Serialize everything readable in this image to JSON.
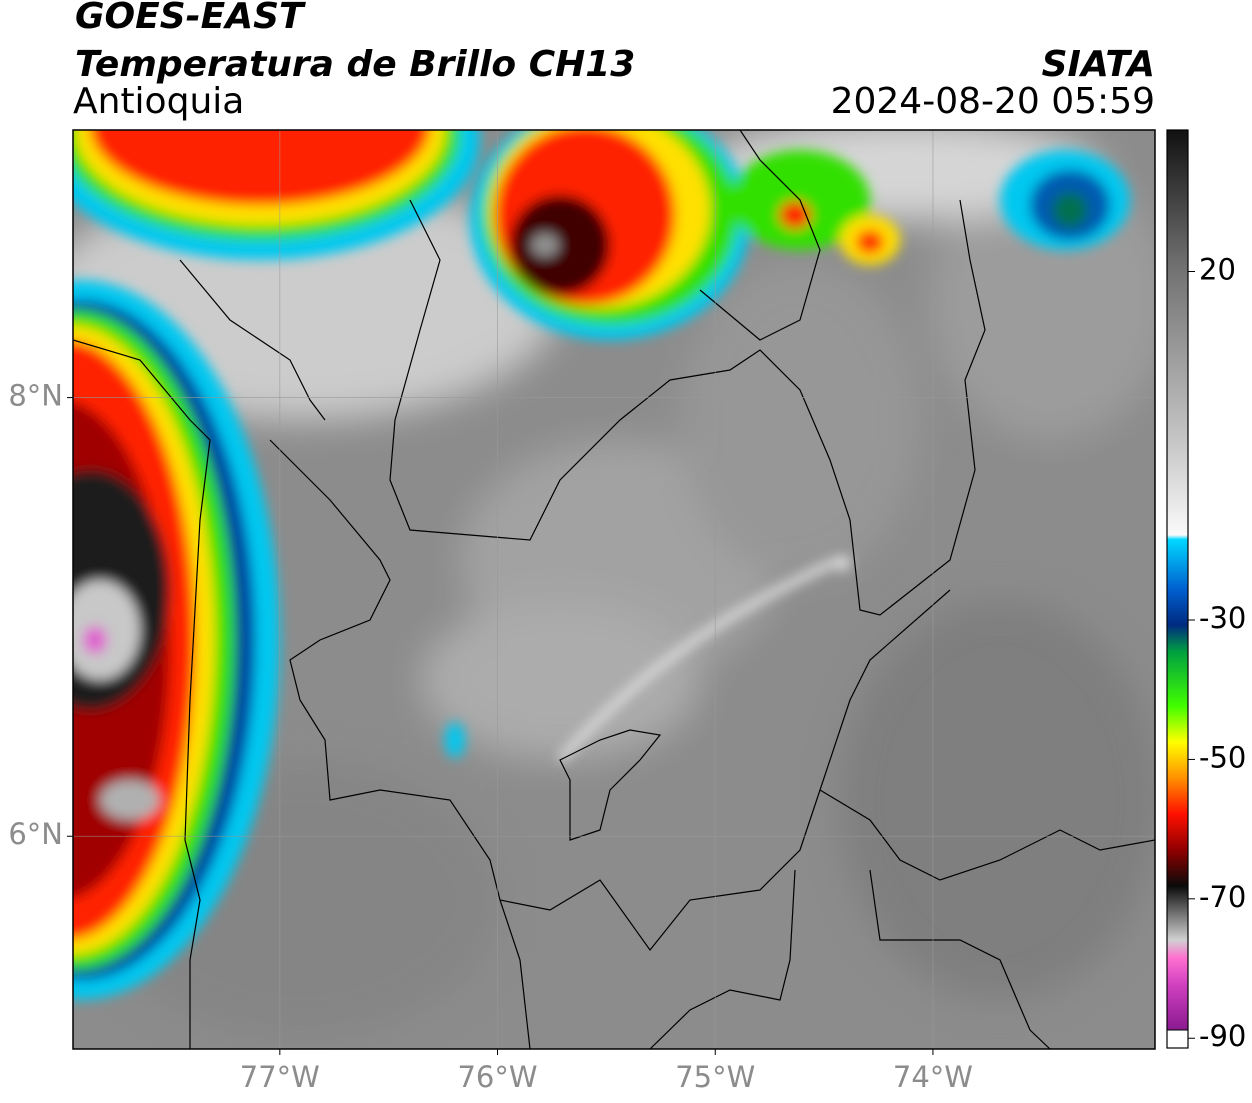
{
  "chart_data": {
    "type": "map",
    "title": "GOES-EAST",
    "subtitle": "Temperatura de Brillo CH13",
    "region": "Antioquia",
    "source": "SIATA",
    "datetime": "2024-08-20 05:59",
    "xlim": [
      -77.95,
      -72.98
    ],
    "ylim": [
      5.03,
      9.22
    ],
    "xticks": [
      {
        "value": -77,
        "label": "77°W"
      },
      {
        "value": -76,
        "label": "76°W"
      },
      {
        "value": -75,
        "label": "75°W"
      },
      {
        "value": -74,
        "label": "74°W"
      }
    ],
    "yticks": [
      {
        "value": 8,
        "label": "8°N"
      },
      {
        "value": 6,
        "label": "6°N"
      }
    ],
    "grid": true,
    "colorbar": {
      "range": [
        -91.4,
        40.3
      ],
      "ticks": [
        20,
        -30,
        -50,
        -70,
        -90
      ]
    }
  }
}
